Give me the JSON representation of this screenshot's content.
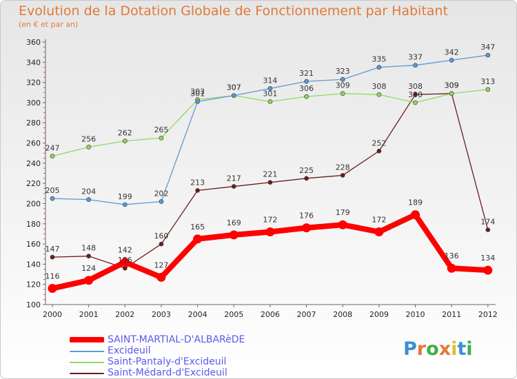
{
  "header": {
    "title": "Evolution de la Dotation Globale de Fonctionnement par Habitant",
    "subtitle": "(en € et par an)"
  },
  "logo": {
    "text": "Proxiti",
    "colors": [
      "#3c8fd6",
      "#e07a3a",
      "#3cb04a",
      "#e07a3a",
      "#d6c22c",
      "#3c8fd6",
      "#3cb04a"
    ]
  },
  "chart_data": {
    "type": "line",
    "title": "Evolution de la Dotation Globale de Fonctionnement par Habitant",
    "subtitle": "(en € et par an)",
    "xlabel": "",
    "ylabel": "",
    "ylim": [
      100,
      360
    ],
    "ytick_step": 20,
    "grid": false,
    "legend_position": "bottom-left",
    "categories": [
      "2000",
      "2001",
      "2002",
      "2003",
      "2004",
      "2005",
      "2006",
      "2007",
      "2008",
      "2009",
      "2010",
      "2011",
      "2012"
    ],
    "series": [
      {
        "name": "Saint-Médard-d'Excideuil",
        "color": "#6b1a1a",
        "width": "thin",
        "values": [
          147,
          148,
          136,
          160,
          213,
          217,
          221,
          225,
          228,
          252,
          308,
          309,
          174
        ],
        "labels": [
          "147",
          "148",
          "136",
          "160",
          "213",
          "217",
          "221",
          "225",
          "228",
          "252",
          "308",
          "309",
          "174"
        ]
      },
      {
        "name": "Saint-Pantaly-d'Excideuil",
        "color": "#8fd860",
        "width": "thin",
        "values": [
          247,
          256,
          262,
          265,
          303,
          307,
          301,
          306,
          309,
          308,
          300,
          309,
          313
        ],
        "labels": [
          "247",
          "256",
          "262",
          "265",
          "303",
          "307",
          "301",
          "306",
          "309",
          "308",
          "300",
          "309",
          "313"
        ]
      },
      {
        "name": "Excideuil",
        "color": "#5b9ad6",
        "width": "thin",
        "values": [
          205,
          204,
          199,
          202,
          301,
          307,
          314,
          321,
          323,
          335,
          337,
          342,
          347
        ],
        "labels": [
          "205",
          "204",
          "199",
          "202",
          "301",
          "307",
          "314",
          "321",
          "323",
          "335",
          "337",
          "342",
          "347"
        ]
      },
      {
        "name": "SAINT-MARTIAL-D'ALBARèDE",
        "color": "#ff0000",
        "width": "thick",
        "values": [
          116,
          124,
          142,
          127,
          165,
          169,
          172,
          176,
          179,
          172,
          189,
          136,
          134
        ],
        "labels": [
          "116",
          "124",
          "142",
          "127",
          "165",
          "169",
          "172",
          "176",
          "179",
          "172",
          "189",
          "136",
          "134"
        ]
      }
    ]
  }
}
